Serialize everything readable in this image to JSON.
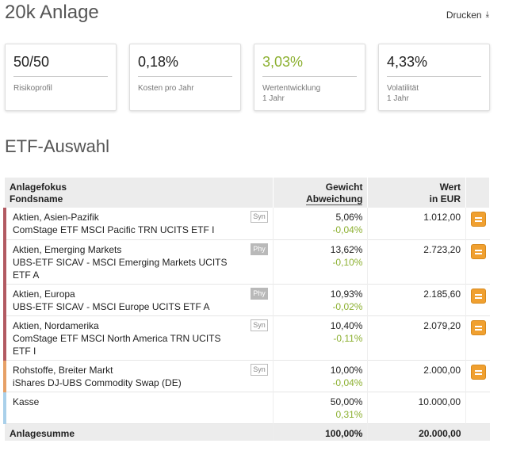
{
  "page": {
    "title": "20k Anlage",
    "print_label": "Drucken",
    "print_icon": "download-icon"
  },
  "kpis": [
    {
      "value": "50/50",
      "label": "Risikoprofil",
      "sublabel": ""
    },
    {
      "value": "0,18%",
      "label": "Kosten pro Jahr",
      "sublabel": ""
    },
    {
      "value": "3,03%",
      "label": "Wertentwicklung",
      "sublabel": "1 Jahr",
      "color": "#8cb030"
    },
    {
      "value": "4,33%",
      "label": "Volatilität",
      "sublabel": "1 Jahr"
    }
  ],
  "etf_section": {
    "title": "ETF-Auswahl",
    "headers": {
      "focus": "Anlagefokus",
      "fund": "Fondsname",
      "weight": "Gewicht",
      "deviation": "Abweichung",
      "value": "Wert",
      "currency": "in EUR"
    },
    "rows": [
      {
        "focus": "Aktien, Asien-Pazifik",
        "fund": "ComStage ETF MSCI Pacific TRN UCITS ETF I",
        "type": "Syn",
        "weight": "5,06%",
        "deviation": "-0,04%",
        "value": "1.012,00",
        "color": "#b25a62"
      },
      {
        "focus": "Aktien, Emerging Markets",
        "fund": "UBS-ETF SICAV - MSCI Emerging Markets UCITS ETF A",
        "type": "Phy",
        "weight": "13,62%",
        "deviation": "-0,10%",
        "value": "2.723,20",
        "color": "#b25a62"
      },
      {
        "focus": "Aktien, Europa",
        "fund": "UBS-ETF SICAV - MSCI Europe UCITS ETF A",
        "type": "Phy",
        "weight": "10,93%",
        "deviation": "-0,02%",
        "value": "2.185,60",
        "color": "#b25a62"
      },
      {
        "focus": "Aktien, Nordamerika",
        "fund": "ComStage ETF MSCI North America TRN UCITS ETF I",
        "type": "Syn",
        "weight": "10,40%",
        "deviation": "-0,11%",
        "value": "2.079,20",
        "color": "#b25a62"
      },
      {
        "focus": "Rohstoffe, Breiter Markt",
        "fund": "iShares DJ-UBS Commodity Swap (DE)",
        "type": "Syn",
        "weight": "10,00%",
        "deviation": "-0,04%",
        "value": "2.000,00",
        "color": "#e6a066"
      },
      {
        "focus": "Kasse",
        "fund": "",
        "type": "",
        "weight": "50,00%",
        "deviation": "0,31%",
        "value": "10.000,00",
        "color": "#a9d0ea"
      }
    ],
    "footer": {
      "label": "Anlagesumme",
      "weight": "100,00%",
      "value": "20.000,00"
    }
  }
}
